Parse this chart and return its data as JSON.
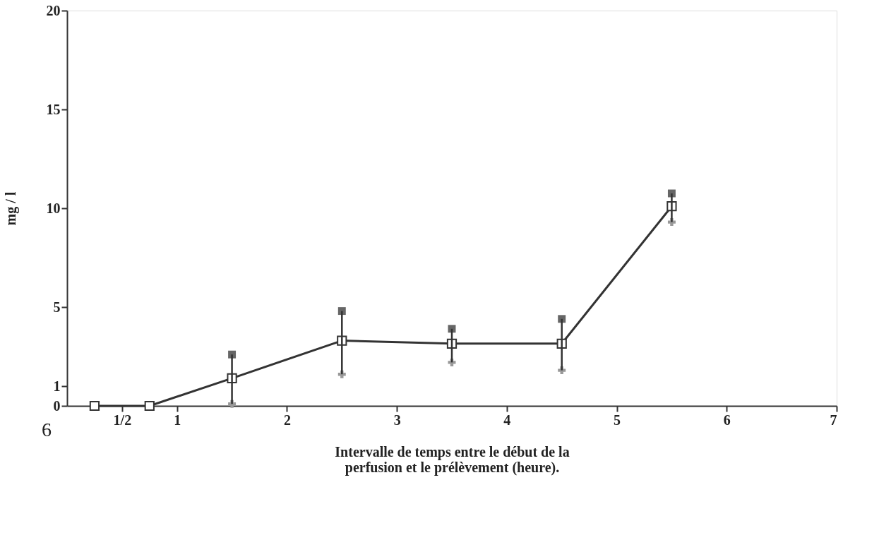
{
  "chart_data": {
    "type": "line",
    "xlabel": "Intervalle de temps entre le début de la\nperfusion et le prélèvement (heure).",
    "ylabel": "mg / l",
    "x": [
      0.25,
      0.75,
      1.5,
      2.5,
      3.5,
      4.5,
      5.5
    ],
    "series": [
      {
        "color": "#333333",
        "marker": "square",
        "values": [
          0,
          0,
          1.4,
          3.3,
          3.15,
          3.15,
          10.1
        ],
        "errors": [
          null,
          null,
          [
            0.1,
            2.6
          ],
          [
            1.6,
            4.8
          ],
          [
            2.2,
            3.9
          ],
          [
            1.8,
            4.4
          ],
          [
            9.3,
            10.75
          ]
        ]
      },
      {
        "type": "scatter",
        "color": "#666666",
        "marker": "square",
        "values": [
          null,
          null,
          2.6,
          4.8,
          3.9,
          4.4,
          10.75
        ]
      },
      {
        "type": "scatter",
        "color": "#999999",
        "marker": "cross",
        "values": [
          null,
          null,
          0.1,
          1.6,
          2.2,
          1.8,
          9.3
        ]
      }
    ],
    "line_style": "solid",
    "xlim": [
      0,
      7
    ],
    "xticks": [
      {
        "value": 0.5,
        "label": "1/2"
      },
      1,
      2,
      3,
      4,
      5,
      6,
      7
    ],
    "ylim": [
      0,
      20
    ],
    "yticks": [
      0,
      1,
      5,
      10,
      15,
      20
    ],
    "grid": false,
    "annotations": [
      "6"
    ]
  }
}
